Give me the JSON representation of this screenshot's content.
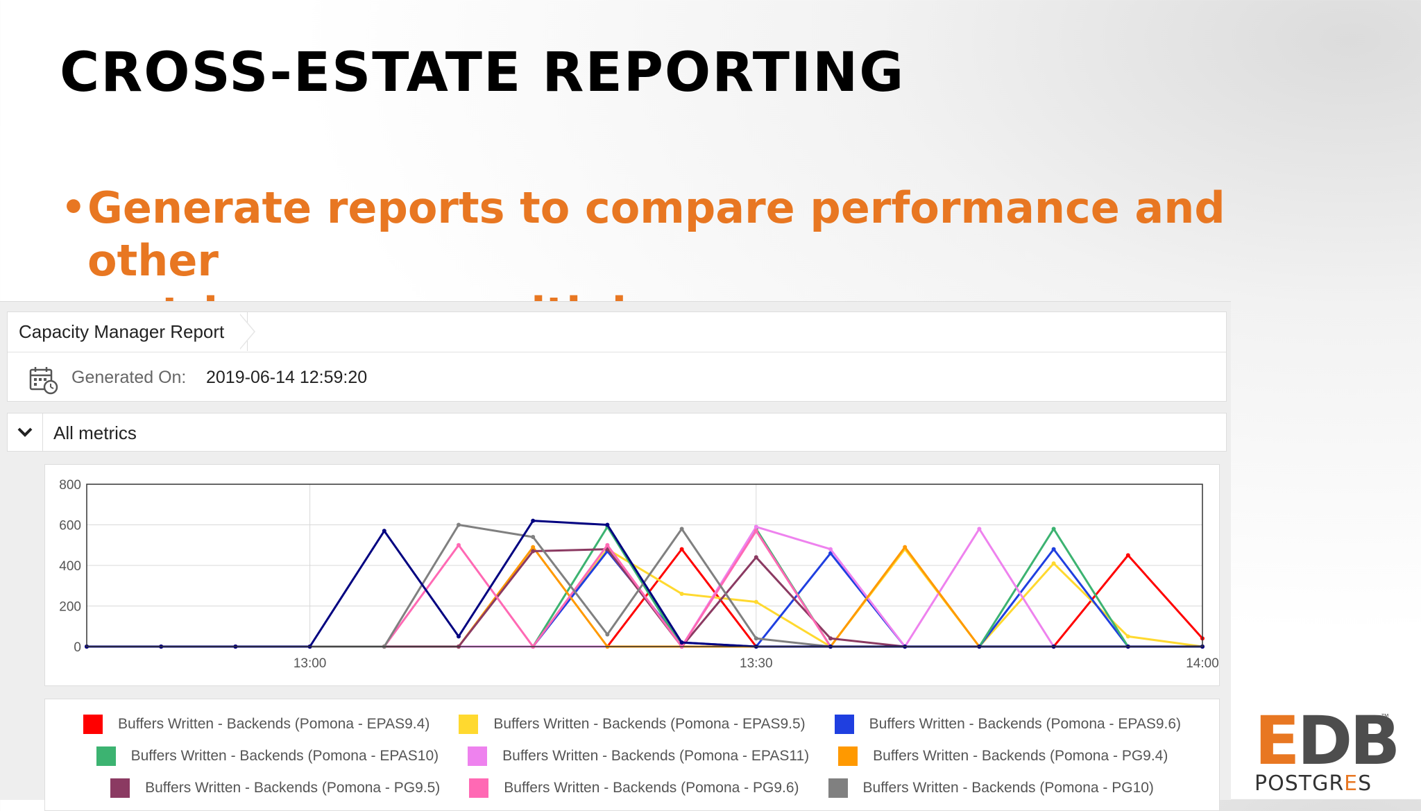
{
  "slide": {
    "title": "CROSS-ESTATE REPORTING",
    "bullet_marker": "•",
    "bullet_line1": "Generate reports to compare performance and other",
    "bullet_line2": "metrics across multiple servers"
  },
  "report": {
    "breadcrumb": "Capacity Manager Report",
    "generated_label": "Generated On:",
    "generated_value": "2019-06-14 12:59:20",
    "section_label": "All metrics",
    "icons": {
      "calendar": "calendar-clock-icon",
      "toggle": "chevron-down-icon"
    }
  },
  "logo": {
    "e": "E",
    "db": "DB",
    "tm": "™",
    "sub_a": "POSTGR",
    "sub_b": "E",
    "sub_c": "S",
    "colors": {
      "orange": "#E87722",
      "gray": "#4d4d4d"
    }
  },
  "chart_data": {
    "type": "line",
    "title": "",
    "xlabel": "",
    "ylabel": "",
    "x_ticks": [
      "13:00",
      "13:30",
      "14:00"
    ],
    "y_ticks": [
      0,
      200,
      400,
      600,
      800
    ],
    "ylim": [
      0,
      800
    ],
    "x_minutes": [
      -15,
      -10,
      -5,
      0,
      5,
      10,
      15,
      20,
      25,
      30,
      35,
      40,
      45,
      50,
      55,
      60
    ],
    "series": [
      {
        "name": "Buffers Written - Backends (Pomona - EPAS9.4)",
        "color": "#ff0000",
        "values": [
          0,
          0,
          0,
          0,
          0,
          0,
          0,
          0,
          480,
          0,
          0,
          0,
          0,
          0,
          450,
          40
        ]
      },
      {
        "name": "Buffers Written - Backends (Pomona - EPAS9.5)",
        "color": "#ffd92f",
        "values": [
          0,
          0,
          0,
          0,
          0,
          0,
          0,
          480,
          260,
          220,
          0,
          480,
          0,
          410,
          50,
          0
        ]
      },
      {
        "name": "Buffers Written - Backends (Pomona - EPAS9.6)",
        "color": "#1f3fe0",
        "values": [
          0,
          0,
          0,
          0,
          0,
          0,
          0,
          470,
          20,
          0,
          460,
          0,
          0,
          480,
          0,
          0
        ]
      },
      {
        "name": "Buffers Written - Backends (Pomona - EPAS10)",
        "color": "#3cb371",
        "values": [
          0,
          0,
          0,
          0,
          0,
          0,
          0,
          590,
          0,
          580,
          0,
          0,
          0,
          580,
          0,
          0
        ]
      },
      {
        "name": "Buffers Written - Backends (Pomona - EPAS11)",
        "color": "#ee82ee",
        "values": [
          0,
          0,
          0,
          0,
          0,
          0,
          0,
          0,
          0,
          590,
          480,
          0,
          580,
          0,
          0,
          0
        ]
      },
      {
        "name": "Buffers Written - Backends (Pomona - PG9.4)",
        "color": "#ff9900",
        "values": [
          0,
          0,
          0,
          0,
          0,
          0,
          490,
          0,
          0,
          0,
          0,
          490,
          0,
          0,
          0,
          0
        ]
      },
      {
        "name": "Buffers Written - Backends (Pomona - PG9.5)",
        "color": "#8b3a62",
        "values": [
          0,
          0,
          0,
          0,
          0,
          0,
          470,
          480,
          0,
          440,
          40,
          0,
          0,
          0,
          0,
          0
        ]
      },
      {
        "name": "Buffers Written - Backends (Pomona - PG9.6)",
        "color": "#ff69b4",
        "values": [
          0,
          0,
          0,
          0,
          0,
          500,
          0,
          500,
          0,
          570,
          0,
          0,
          0,
          0,
          0,
          0
        ]
      },
      {
        "name": "Buffers Written - Backends (Pomona - PG10)",
        "color": "#808080",
        "values": [
          0,
          0,
          0,
          0,
          0,
          600,
          540,
          60,
          580,
          40,
          0,
          0,
          0,
          0,
          0,
          0
        ]
      },
      {
        "name": "",
        "color": "#000080",
        "values": [
          0,
          0,
          0,
          0,
          570,
          50,
          620,
          600,
          20,
          0,
          0,
          0,
          0,
          0,
          0,
          0
        ]
      }
    ],
    "legend_rows": [
      [
        0,
        1,
        2
      ],
      [
        3,
        4,
        5
      ],
      [
        6,
        7,
        8
      ]
    ],
    "legend_position": "bottom",
    "grid": true
  }
}
